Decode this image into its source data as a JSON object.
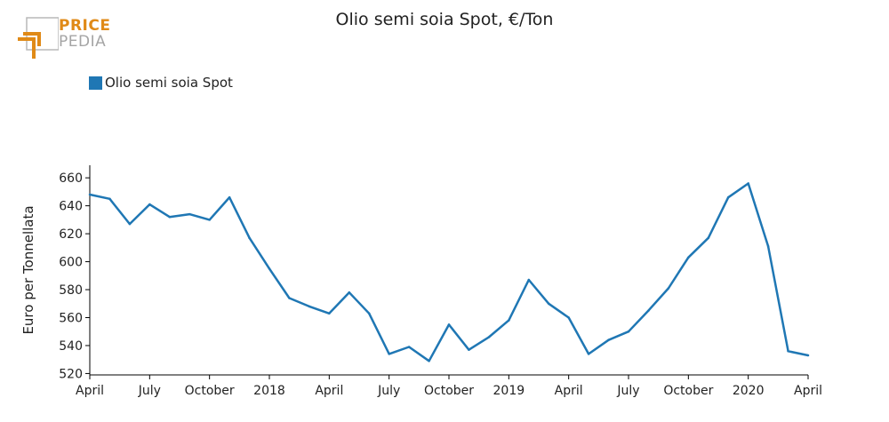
{
  "logo": {
    "line1": "PRICE",
    "line2": "PEDIA"
  },
  "colors": {
    "series": "#1f77b4",
    "axis": "#000000",
    "logo_orange": "#e08a17",
    "logo_gray": "#a5a5a5"
  },
  "chart_data": {
    "type": "line",
    "title": "Olio semi soia Spot, €/Ton",
    "xlabel": "",
    "ylabel": "Euro per Tonnellata",
    "x_range": [
      0,
      36
    ],
    "ylim": [
      519,
      669
    ],
    "y_ticks": [
      520,
      540,
      560,
      580,
      600,
      620,
      640,
      660
    ],
    "x_ticks": [
      {
        "pos": 0,
        "label": "April"
      },
      {
        "pos": 3,
        "label": "July"
      },
      {
        "pos": 6,
        "label": "October"
      },
      {
        "pos": 9,
        "label": "2018"
      },
      {
        "pos": 12,
        "label": "April"
      },
      {
        "pos": 15,
        "label": "July"
      },
      {
        "pos": 18,
        "label": "October"
      },
      {
        "pos": 21,
        "label": "2019"
      },
      {
        "pos": 24,
        "label": "April"
      },
      {
        "pos": 27,
        "label": "July"
      },
      {
        "pos": 30,
        "label": "October"
      },
      {
        "pos": 33,
        "label": "2020"
      },
      {
        "pos": 36,
        "label": "April"
      }
    ],
    "legend": "top-left",
    "grid": false,
    "series": [
      {
        "name": "Olio semi soia Spot",
        "color": "#1f77b4",
        "x": [
          0,
          1,
          2,
          3,
          4,
          5,
          6,
          7,
          8,
          9,
          10,
          11,
          12,
          13,
          14,
          15,
          16,
          17,
          18,
          19,
          20,
          21,
          22,
          23,
          24,
          25,
          26,
          27,
          28,
          29,
          30,
          31,
          32,
          33,
          34,
          35,
          36
        ],
        "values": [
          648,
          645,
          627,
          641,
          632,
          634,
          630,
          646,
          617,
          595,
          574,
          568,
          563,
          578,
          563,
          534,
          539,
          529,
          555,
          537,
          546,
          558,
          587,
          570,
          560,
          534,
          544,
          550,
          565,
          581,
          603,
          617,
          646,
          656,
          611,
          536,
          533
        ]
      }
    ]
  }
}
